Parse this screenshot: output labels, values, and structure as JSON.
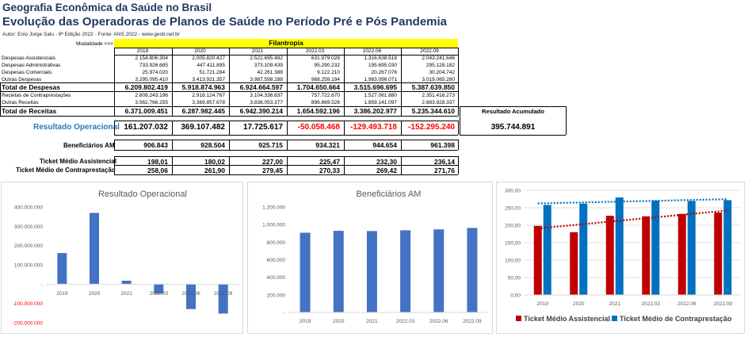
{
  "header": {
    "title": "Geografia Econômica da Saúde no Brasil",
    "subtitle": "Evolução das Operadoras de Planos de Saúde no Período Pré e Pós Pandemia",
    "credits": "Autor: Enio Jorge Salu - 6ª Edição 2022 - Fonte: ANS 2022 - www.gesb.net.br"
  },
  "table": {
    "modalidade_label": "Modalidade >>>",
    "modalidade_value": "Filantropia",
    "years": [
      "2019",
      "2020",
      "2021",
      "2022.03",
      "2022.06",
      "2022.09"
    ],
    "expense_rows": [
      {
        "label": "Despesas Assistenciais",
        "values": [
          "2.154.806.304",
          "2.005.820.427",
          "2.521.695.482",
          "631.979.028",
          "1.316.638.518",
          "2.043.241.646"
        ]
      },
      {
        "label": "Despesas Administrativas",
        "values": [
          "733.926.685",
          "447.411.895",
          "373.109.439",
          "95.290.232",
          "195.695.030",
          "295.128.182"
        ]
      },
      {
        "label": "Despesas Comerciais",
        "values": [
          "25.974.020",
          "51.721.284",
          "42.261.388",
          "9.122.210",
          "20.267.076",
          "30.204.742"
        ]
      },
      {
        "label": "Outras Despesas",
        "values": [
          "3.295.095.410",
          "3.413.921.357",
          "3.987.598.288",
          "968.259.194",
          "1.983.096.071",
          "3.019.065.280"
        ]
      }
    ],
    "total_despesas": {
      "label": "Total de Despesas",
      "values": [
        "6.209.802.419",
        "5.918.874.963",
        "6.924.664.597",
        "1.704.650.664",
        "3.515.696.695",
        "5.387.639.850"
      ]
    },
    "revenue_rows": [
      {
        "label": "Receitas de Contraprestações",
        "values": [
          "2.808.243.196",
          "2.918.124.767",
          "3.104.336.837",
          "757.722.670",
          "1.527.061.880",
          "2.351.416.273"
        ]
      },
      {
        "label": "Outras Receitas",
        "values": [
          "3.562.766.255",
          "3.369.857.678",
          "3.838.053.377",
          "896.869.526",
          "1.859.141.097",
          "2.883.928.337"
        ]
      }
    ],
    "total_receitas": {
      "label": "Total de Receitas",
      "values": [
        "6.371.009.451",
        "6.287.982.445",
        "6.942.390.214",
        "1.654.592.196",
        "3.386.202.977",
        "5.235.344.610"
      ]
    },
    "resultado_acumulado_label": "Resultado Acumulado",
    "resultado_acumulado_value": "395.744.891",
    "resultado_operacional": {
      "label": "Resultado Operacional",
      "values": [
        "161.207.032",
        "369.107.482",
        "17.725.617",
        "-50.058.468",
        "-129.493.718",
        "-152.295.240"
      ]
    },
    "beneficiarios": {
      "label": "Beneficiários AM",
      "values": [
        "906.843",
        "928.504",
        "925.715",
        "934.321",
        "944.654",
        "961.398"
      ]
    },
    "ticket_assistencial": {
      "label": "Ticket Médio Assistencial",
      "values": [
        "198,01",
        "180,02",
        "227,00",
        "225,47",
        "232,30",
        "236,14"
      ]
    },
    "ticket_contraprestacao": {
      "label": "Ticket Médio de Contraprestação",
      "values": [
        "258,06",
        "261,90",
        "279,45",
        "270,33",
        "269,42",
        "271,76"
      ]
    },
    "colors": {
      "modalidade_bg": "#ffff00",
      "result_label": "#2e75b6",
      "negative": "#ff0000"
    }
  },
  "chart_data": [
    {
      "type": "bar",
      "title": "Resultado Operacional",
      "categories": [
        "2019",
        "2020",
        "2021",
        "2022.03",
        "2022.06",
        "2022.09"
      ],
      "values": [
        161207032,
        369107482,
        17725617,
        -50058468,
        -129493718,
        -152295240
      ],
      "ylim": [
        -200000000,
        400000000
      ],
      "yticks": [
        400000000,
        300000000,
        200000000,
        100000000,
        0,
        -100000000,
        -200000000
      ],
      "ytick_labels": [
        "400.000.000",
        "300.000.000",
        "200.000.000",
        "100.000.000",
        "-",
        "-100.000.000",
        "-200.000.000"
      ],
      "grid": false,
      "color": "#4472c4",
      "negative_label_color": "#ff0000"
    },
    {
      "type": "bar",
      "title": "Beneficiários AM",
      "categories": [
        "2019",
        "2020",
        "2021",
        "2022.03",
        "2022.06",
        "2022.09"
      ],
      "values": [
        906843,
        928504,
        925715,
        934321,
        944654,
        961398
      ],
      "ylim": [
        0,
        1200000
      ],
      "yticks": [
        0,
        200000,
        400000,
        600000,
        800000,
        1000000,
        1200000
      ],
      "ytick_labels": [
        "-",
        "200.000",
        "400.000",
        "600.000",
        "800.000",
        "1.000.000",
        "1.200.000"
      ],
      "grid": false,
      "color": "#4472c4"
    },
    {
      "type": "bar",
      "title": "",
      "categories": [
        "2019",
        "2020",
        "2021",
        "2022.03",
        "2022.06",
        "2022.09"
      ],
      "series": [
        {
          "name": "Ticket Médio Assistencial",
          "values": [
            198.01,
            180.02,
            227.0,
            225.47,
            232.3,
            236.14
          ],
          "color": "#c00000"
        },
        {
          "name": "Ticket Médio de Contraprestação",
          "values": [
            258.06,
            261.9,
            279.45,
            270.33,
            269.42,
            271.76
          ],
          "color": "#0070c0"
        }
      ],
      "ylim": [
        0,
        300
      ],
      "yticks": [
        0,
        50,
        100,
        150,
        200,
        250,
        300
      ],
      "ytick_labels": [
        "0,00",
        "50,00",
        "100,00",
        "150,00",
        "200,00",
        "250,00",
        "300,00"
      ],
      "grid": true,
      "trendlines": true,
      "legend": "bottom"
    }
  ]
}
